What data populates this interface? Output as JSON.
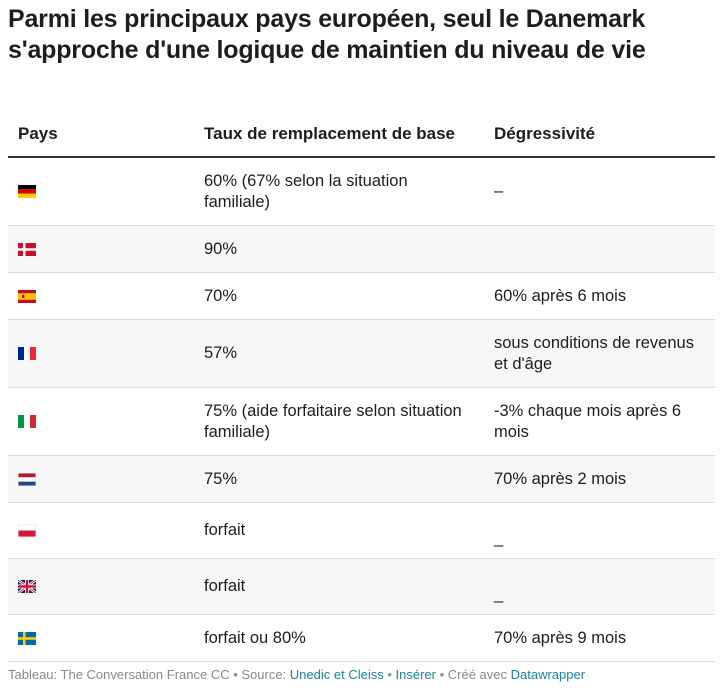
{
  "title": "Parmi les principaux pays européen, seul le Danemark s'approche d'une logique de maintien du niveau de vie",
  "chart_data": {
    "type": "table",
    "columns": [
      "Pays",
      "Taux de remplacement de base",
      "Dégressivité"
    ],
    "rows": [
      {
        "flag": "germany-flag-icon",
        "taux": "60% (67% selon la situation familiale)",
        "degressivite": "–"
      },
      {
        "flag": "denmark-flag-icon",
        "taux": "90%",
        "degressivite": ""
      },
      {
        "flag": "spain-flag-icon",
        "taux": "70%",
        "degressivite": "60% après 6 mois"
      },
      {
        "flag": "france-flag-icon",
        "taux": "57%",
        "degressivite": "sous conditions de revenus et d'âge"
      },
      {
        "flag": "italy-flag-icon",
        "taux": "75% (aide forfaitaire selon situation familiale)",
        "degressivite": "-3% chaque mois après 6 mois"
      },
      {
        "flag": "netherlands-flag-icon",
        "taux": "75%",
        "degressivite": "70% après 2 mois"
      },
      {
        "flag": "poland-flag-icon",
        "taux": "forfait",
        "degressivite": "_"
      },
      {
        "flag": "uk-flag-icon",
        "taux": "forfait",
        "degressivite": "_"
      },
      {
        "flag": "sweden-flag-icon",
        "taux": "forfait ou 80%",
        "degressivite": "70% après 9 mois"
      }
    ]
  },
  "footer": {
    "prefix": "Tableau: The Conversation France CC • Source: ",
    "source_link": "Unedic et Cleiss",
    "sep1": " • ",
    "insert_link": "Insérer",
    "sep2": "  • Créé avec ",
    "dw_link": "Datawrapper"
  }
}
